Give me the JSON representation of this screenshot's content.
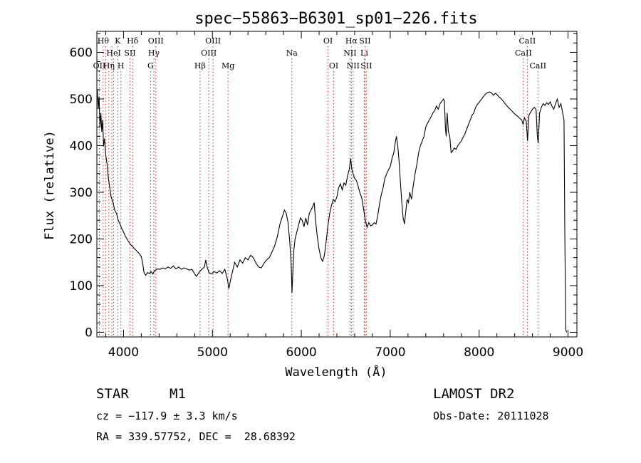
{
  "chart_data": {
    "type": "line",
    "title": "spec−55863−B6301_sp01−226.fits",
    "xlabel": "Wavelength (Å)",
    "ylabel": "Flux (relative)",
    "xlim": [
      3700,
      9100
    ],
    "ylim": [
      -10,
      645
    ],
    "x_ticks": [
      4000,
      5000,
      6000,
      7000,
      8000,
      9000
    ],
    "y_ticks": [
      0,
      100,
      200,
      300,
      400,
      500,
      600
    ],
    "grid": false,
    "legend": "none",
    "line_color": "#000000",
    "marker_line_color": "#c03030",
    "series": [
      {
        "points": [
          [
            3705,
            520
          ],
          [
            3715,
            480
          ],
          [
            3725,
            505
          ],
          [
            3735,
            440
          ],
          [
            3745,
            470
          ],
          [
            3755,
            430
          ],
          [
            3765,
            455
          ],
          [
            3775,
            400
          ],
          [
            3785,
            415
          ],
          [
            3800,
            380
          ],
          [
            3815,
            360
          ],
          [
            3830,
            330
          ],
          [
            3845,
            310
          ],
          [
            3860,
            290
          ],
          [
            3880,
            280
          ],
          [
            3900,
            262
          ],
          [
            3920,
            255
          ],
          [
            3940,
            240
          ],
          [
            3960,
            232
          ],
          [
            3980,
            222
          ],
          [
            4000,
            215
          ],
          [
            4020,
            206
          ],
          [
            4040,
            200
          ],
          [
            4060,
            193
          ],
          [
            4080,
            188
          ],
          [
            4100,
            184
          ],
          [
            4120,
            180
          ],
          [
            4140,
            176
          ],
          [
            4160,
            172
          ],
          [
            4180,
            168
          ],
          [
            4200,
            162
          ],
          [
            4215,
            148
          ],
          [
            4230,
            128
          ],
          [
            4250,
            122
          ],
          [
            4270,
            128
          ],
          [
            4290,
            126
          ],
          [
            4310,
            130
          ],
          [
            4330,
            125
          ],
          [
            4350,
            132
          ],
          [
            4380,
            136
          ],
          [
            4410,
            135
          ],
          [
            4440,
            138
          ],
          [
            4470,
            136
          ],
          [
            4500,
            140
          ],
          [
            4530,
            137
          ],
          [
            4560,
            142
          ],
          [
            4590,
            136
          ],
          [
            4620,
            140
          ],
          [
            4650,
            135
          ],
          [
            4680,
            138
          ],
          [
            4710,
            136
          ],
          [
            4740,
            133
          ],
          [
            4770,
            135
          ],
          [
            4800,
            125
          ],
          [
            4820,
            120
          ],
          [
            4850,
            128
          ],
          [
            4880,
            135
          ],
          [
            4910,
            140
          ],
          [
            4925,
            155
          ],
          [
            4940,
            140
          ],
          [
            4960,
            128
          ],
          [
            4990,
            125
          ],
          [
            5020,
            130
          ],
          [
            5050,
            127
          ],
          [
            5080,
            132
          ],
          [
            5110,
            126
          ],
          [
            5140,
            135
          ],
          [
            5170,
            112
          ],
          [
            5185,
            93
          ],
          [
            5200,
            108
          ],
          [
            5220,
            125
          ],
          [
            5250,
            150
          ],
          [
            5280,
            140
          ],
          [
            5310,
            155
          ],
          [
            5340,
            148
          ],
          [
            5370,
            160
          ],
          [
            5400,
            155
          ],
          [
            5430,
            165
          ],
          [
            5460,
            160
          ],
          [
            5490,
            148
          ],
          [
            5520,
            140
          ],
          [
            5550,
            138
          ],
          [
            5580,
            148
          ],
          [
            5610,
            155
          ],
          [
            5640,
            160
          ],
          [
            5670,
            172
          ],
          [
            5700,
            185
          ],
          [
            5730,
            205
          ],
          [
            5760,
            232
          ],
          [
            5790,
            250
          ],
          [
            5810,
            262
          ],
          [
            5830,
            255
          ],
          [
            5850,
            235
          ],
          [
            5870,
            195
          ],
          [
            5885,
            150
          ],
          [
            5895,
            85
          ],
          [
            5905,
            130
          ],
          [
            5915,
            175
          ],
          [
            5930,
            200
          ],
          [
            5950,
            215
          ],
          [
            5970,
            230
          ],
          [
            5990,
            245
          ],
          [
            6010,
            240
          ],
          [
            6030,
            226
          ],
          [
            6050,
            245
          ],
          [
            6070,
            230
          ],
          [
            6090,
            255
          ],
          [
            6110,
            262
          ],
          [
            6130,
            270
          ],
          [
            6145,
            278
          ],
          [
            6160,
            240
          ],
          [
            6180,
            205
          ],
          [
            6200,
            178
          ],
          [
            6220,
            160
          ],
          [
            6240,
            152
          ],
          [
            6260,
            165
          ],
          [
            6280,
            195
          ],
          [
            6300,
            230
          ],
          [
            6320,
            255
          ],
          [
            6340,
            272
          ],
          [
            6360,
            285
          ],
          [
            6380,
            280
          ],
          [
            6400,
            290
          ],
          [
            6420,
            310
          ],
          [
            6440,
            318
          ],
          [
            6460,
            305
          ],
          [
            6480,
            320
          ],
          [
            6500,
            315
          ],
          [
            6520,
            335
          ],
          [
            6540,
            350
          ],
          [
            6555,
            372
          ],
          [
            6570,
            348
          ],
          [
            6585,
            338
          ],
          [
            6600,
            330
          ],
          [
            6620,
            325
          ],
          [
            6640,
            312
          ],
          [
            6660,
            298
          ],
          [
            6680,
            288
          ],
          [
            6700,
            265
          ],
          [
            6720,
            240
          ],
          [
            6740,
            225
          ],
          [
            6760,
            235
          ],
          [
            6780,
            228
          ],
          [
            6800,
            230
          ],
          [
            6820,
            235
          ],
          [
            6840,
            232
          ],
          [
            6860,
            250
          ],
          [
            6880,
            275
          ],
          [
            6900,
            295
          ],
          [
            6920,
            310
          ],
          [
            6940,
            330
          ],
          [
            6960,
            340
          ],
          [
            6980,
            348
          ],
          [
            7000,
            355
          ],
          [
            7020,
            372
          ],
          [
            7040,
            385
          ],
          [
            7055,
            405
          ],
          [
            7070,
            420
          ],
          [
            7085,
            400
          ],
          [
            7100,
            365
          ],
          [
            7115,
            322
          ],
          [
            7130,
            280
          ],
          [
            7145,
            245
          ],
          [
            7160,
            232
          ],
          [
            7175,
            258
          ],
          [
            7190,
            285
          ],
          [
            7205,
            278
          ],
          [
            7220,
            300
          ],
          [
            7240,
            285
          ],
          [
            7260,
            315
          ],
          [
            7280,
            340
          ],
          [
            7300,
            360
          ],
          [
            7320,
            385
          ],
          [
            7340,
            400
          ],
          [
            7360,
            410
          ],
          [
            7380,
            420
          ],
          [
            7400,
            440
          ],
          [
            7420,
            448
          ],
          [
            7440,
            455
          ],
          [
            7460,
            462
          ],
          [
            7480,
            470
          ],
          [
            7500,
            475
          ],
          [
            7520,
            485
          ],
          [
            7540,
            478
          ],
          [
            7560,
            490
          ],
          [
            7580,
            495
          ],
          [
            7600,
            500
          ],
          [
            7610,
            495
          ],
          [
            7620,
            440
          ],
          [
            7630,
            420
          ],
          [
            7640,
            470
          ],
          [
            7655,
            430
          ],
          [
            7670,
            420
          ],
          [
            7685,
            385
          ],
          [
            7700,
            388
          ],
          [
            7720,
            395
          ],
          [
            7740,
            392
          ],
          [
            7760,
            400
          ],
          [
            7780,
            405
          ],
          [
            7800,
            410
          ],
          [
            7820,
            418
          ],
          [
            7840,
            425
          ],
          [
            7860,
            435
          ],
          [
            7880,
            445
          ],
          [
            7900,
            455
          ],
          [
            7920,
            465
          ],
          [
            7940,
            470
          ],
          [
            7960,
            482
          ],
          [
            7980,
            488
          ],
          [
            8000,
            493
          ],
          [
            8020,
            498
          ],
          [
            8040,
            503
          ],
          [
            8060,
            508
          ],
          [
            8080,
            512
          ],
          [
            8100,
            514
          ],
          [
            8120,
            515
          ],
          [
            8140,
            513
          ],
          [
            8160,
            508
          ],
          [
            8180,
            512
          ],
          [
            8200,
            510
          ],
          [
            8220,
            505
          ],
          [
            8240,
            502
          ],
          [
            8260,
            498
          ],
          [
            8280,
            493
          ],
          [
            8300,
            488
          ],
          [
            8320,
            484
          ],
          [
            8340,
            480
          ],
          [
            8360,
            476
          ],
          [
            8380,
            472
          ],
          [
            8400,
            468
          ],
          [
            8420,
            465
          ],
          [
            8440,
            462
          ],
          [
            8460,
            458
          ],
          [
            8480,
            455
          ],
          [
            8495,
            445
          ],
          [
            8510,
            460
          ],
          [
            8530,
            452
          ],
          [
            8545,
            410
          ],
          [
            8560,
            465
          ],
          [
            8580,
            472
          ],
          [
            8600,
            478
          ],
          [
            8620,
            482
          ],
          [
            8640,
            478
          ],
          [
            8655,
            420
          ],
          [
            8665,
            405
          ],
          [
            8680,
            470
          ],
          [
            8700,
            482
          ],
          [
            8720,
            490
          ],
          [
            8740,
            486
          ],
          [
            8760,
            492
          ],
          [
            8780,
            488
          ],
          [
            8800,
            494
          ],
          [
            8820,
            484
          ],
          [
            8840,
            478
          ],
          [
            8860,
            490
          ],
          [
            8880,
            500
          ],
          [
            8900,
            482
          ],
          [
            8920,
            490
          ],
          [
            8940,
            470
          ],
          [
            8955,
            455
          ],
          [
            8965,
            200
          ],
          [
            8975,
            5
          ],
          [
            8985,
            0
          ]
        ]
      }
    ],
    "markers": [
      {
        "x": 3728,
        "top": "OII",
        "row": 2
      },
      {
        "x": 3771,
        "top": "Hθ",
        "row": 0
      },
      {
        "x": 3799,
        "top": "",
        "row": 0
      },
      {
        "x": 3835,
        "top": "Hη",
        "row": 2
      },
      {
        "x": 3869,
        "top": "",
        "row": 0
      },
      {
        "x": 3889,
        "top": "HeI",
        "row": 1
      },
      {
        "x": 3934,
        "top": "K",
        "row": 0
      },
      {
        "x": 3970,
        "top": "H",
        "row": 2
      },
      {
        "x": 4072,
        "top": "SII",
        "row": 1
      },
      {
        "x": 4102,
        "top": "Hδ",
        "row": 0
      },
      {
        "x": 4304,
        "top": "G",
        "row": 2
      },
      {
        "x": 4341,
        "top": "Hγ",
        "row": 1
      },
      {
        "x": 4363,
        "top": "OIII",
        "row": 0
      },
      {
        "x": 4861,
        "top": "Hβ",
        "row": 2
      },
      {
        "x": 4959,
        "top": "OIII",
        "row": 1
      },
      {
        "x": 5007,
        "top": "OIII",
        "row": 0
      },
      {
        "x": 5175,
        "top": "Mg",
        "row": 2
      },
      {
        "x": 5893,
        "top": "Na",
        "row": 1
      },
      {
        "x": 6300,
        "top": "OI",
        "row": 0
      },
      {
        "x": 6364,
        "top": "OI",
        "row": 2
      },
      {
        "x": 6548,
        "top": "NII",
        "row": 1
      },
      {
        "x": 6563,
        "top": "Hα",
        "row": 0
      },
      {
        "x": 6583,
        "top": "NII",
        "row": 2
      },
      {
        "x": 6708,
        "top": "Li",
        "row": 1
      },
      {
        "x": 6716,
        "top": "SII",
        "row": 0
      },
      {
        "x": 6731,
        "top": "SII",
        "row": 2
      },
      {
        "x": 8498,
        "top": "CaII",
        "row": 1
      },
      {
        "x": 8542,
        "top": "CaII",
        "row": 0
      },
      {
        "x": 8662,
        "top": "CaII",
        "row": 2
      }
    ]
  },
  "info": {
    "class": "STAR",
    "subclass": "M1",
    "survey": "LAMOST DR2",
    "cz": "cz = −117.9 ± 3.3 km/s",
    "obs_date": "Obs-Date: 20111028",
    "radec": "RA = 339.57752, DEC =  28.68392"
  }
}
